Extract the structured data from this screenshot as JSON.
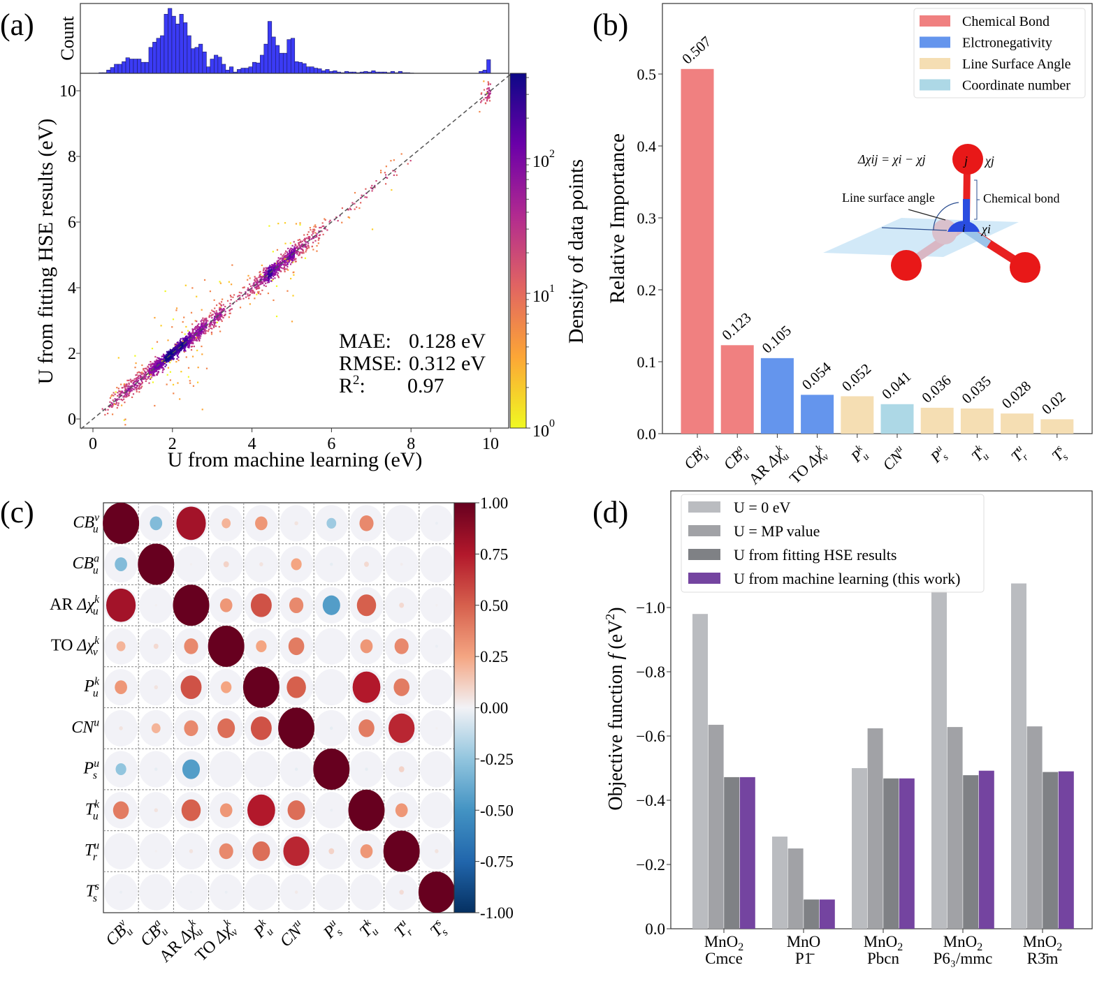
{
  "panel_labels": {
    "a": "(a)",
    "b": "(b)",
    "c": "(c)",
    "d": "(d)"
  },
  "chart_data": [
    {
      "panel": "(a)",
      "type": "scatter",
      "xlabel": "U from machine learning (eV)",
      "ylabel": "U from fitting HSE results (eV)",
      "xlim": [
        -0.3,
        10.5
      ],
      "ylim": [
        -0.3,
        10.5
      ],
      "xticks": [
        "0",
        "2",
        "4",
        "6",
        "8",
        "10"
      ],
      "yticks": [
        "0",
        "2",
        "4",
        "6",
        "8",
        "10"
      ],
      "reference_line": "y = x (dashed)",
      "metrics": [
        {
          "label": "MAE:",
          "value": "0.128 eV"
        },
        {
          "label": "RMSE:",
          "value": "0.312 eV"
        },
        {
          "label": "R",
          "label_sup": "2",
          "label_tail": ":",
          "value": "0.97"
        }
      ],
      "colorbar": {
        "label": "Density of data points",
        "scale": "log",
        "range": [
          1,
          430
        ],
        "colormap": "plasma_r",
        "ticks": [
          {
            "base": "10",
            "exp": "0",
            "value": 1
          },
          {
            "base": "10",
            "exp": "1",
            "value": 10
          },
          {
            "base": "10",
            "exp": "2",
            "value": 100
          }
        ]
      },
      "marginal_histogram": {
        "ylabel": "Count",
        "range": [
          0.15,
          10.0
        ],
        "color": "#3b3bf5",
        "relative_counts": [
          1,
          1,
          5,
          9,
          14,
          14,
          18,
          24,
          22,
          22,
          22,
          17,
          17,
          40,
          48,
          54,
          58,
          91,
          100,
          88,
          76,
          91,
          78,
          58,
          38,
          40,
          45,
          33,
          10,
          22,
          28,
          25,
          14,
          5,
          10,
          2,
          6,
          8,
          8,
          10,
          17,
          16,
          28,
          45,
          80,
          56,
          43,
          31,
          31,
          52,
          54,
          18,
          17,
          15,
          10,
          10,
          8,
          7,
          4,
          6,
          3,
          4,
          2,
          1,
          3,
          2,
          2,
          1,
          2,
          3,
          2,
          4,
          2,
          2,
          2,
          1,
          3,
          1,
          3,
          1,
          1,
          0.5,
          0,
          0,
          0,
          0,
          0,
          0,
          0,
          0,
          0,
          0,
          0,
          0,
          0,
          0,
          0,
          0,
          0,
          3,
          5,
          21
        ]
      }
    },
    {
      "panel": "(b)",
      "type": "bar",
      "ylabel": "Relative Importance",
      "ylim": [
        0,
        0.598
      ],
      "yticks": [
        "0.0",
        "0.1",
        "0.2",
        "0.3",
        "0.4",
        "0.5"
      ],
      "categories": [
        {
          "pre": "",
          "base": "CB",
          "sup": "v",
          "sub": "u"
        },
        {
          "pre": "",
          "base": "CB",
          "sup": "a",
          "sub": "u"
        },
        {
          "pre": "AR ",
          "base": "Δχ",
          "sup": "k",
          "sub": "u"
        },
        {
          "pre": "TO ",
          "base": "Δχ",
          "sup": "k",
          "sub": "v"
        },
        {
          "pre": "",
          "base": "P",
          "sup": "k",
          "sub": "u"
        },
        {
          "pre": "",
          "base": "CN",
          "sup": "u",
          "sub": ""
        },
        {
          "pre": "",
          "base": "P",
          "sup": "u",
          "sub": "s"
        },
        {
          "pre": "",
          "base": "T",
          "sup": "k",
          "sub": "u"
        },
        {
          "pre": "",
          "base": "T",
          "sup": "u",
          "sub": "r"
        },
        {
          "pre": "",
          "base": "T",
          "sup": "s",
          "sub": "s"
        }
      ],
      "values": [
        0.507,
        0.123,
        0.105,
        0.054,
        0.052,
        0.041,
        0.036,
        0.035,
        0.028,
        0.02
      ],
      "value_labels": [
        "0.507",
        "0.123",
        "0.105",
        "0.054",
        "0.052",
        "0.041",
        "0.036",
        "0.035",
        "0.028",
        "0.02"
      ],
      "bar_groups": [
        0,
        0,
        1,
        1,
        2,
        3,
        2,
        2,
        2,
        2
      ],
      "legend": [
        {
          "name": "Chemical Bond",
          "color": "#f08080"
        },
        {
          "name": "Elctronegativity",
          "color": "#6495ed"
        },
        {
          "name": "Line Surface Angle",
          "color": "#f5deb3"
        },
        {
          "name": "Coordinate number",
          "color": "#add8e6"
        }
      ],
      "legend_position": "top-right",
      "inset": {
        "equation": "Δχij = χi − χj",
        "chi_j": "χj",
        "chi_i": "χi",
        "atom_j": "j",
        "atom_i": "i",
        "line_surface_angle": "Line surface angle",
        "chemical_bond": "Chemical bond"
      }
    },
    {
      "panel": "(c)",
      "type": "heatmap",
      "labels": [
        {
          "pre": "",
          "base": "CB",
          "sup": "v",
          "sub": "u"
        },
        {
          "pre": "",
          "base": "CB",
          "sup": "a",
          "sub": "u"
        },
        {
          "pre": "AR ",
          "base": "Δχ",
          "sup": "k",
          "sub": "u"
        },
        {
          "pre": "TO ",
          "base": "Δχ",
          "sup": "k",
          "sub": "v"
        },
        {
          "pre": "",
          "base": "P",
          "sup": "k",
          "sub": "u"
        },
        {
          "pre": "",
          "base": "CN",
          "sup": "u",
          "sub": ""
        },
        {
          "pre": "",
          "base": "P",
          "sup": "u",
          "sub": "s"
        },
        {
          "pre": "",
          "base": "T",
          "sup": "k",
          "sub": "u"
        },
        {
          "pre": "",
          "base": "T",
          "sup": "u",
          "sub": "r"
        },
        {
          "pre": "",
          "base": "T",
          "sup": "s",
          "sub": "s"
        }
      ],
      "matrix": [
        [
          1,
          -0.3,
          0.8,
          0.2,
          0.3,
          0.05,
          -0.22,
          0.35,
          0,
          -0.02
        ],
        [
          -0.3,
          1,
          0.01,
          0.1,
          0.05,
          0.25,
          -0.03,
          0.08,
          0.02,
          0
        ],
        [
          0.8,
          0.01,
          1,
          0.3,
          0.55,
          0.35,
          -0.45,
          0.5,
          0.08,
          0.01
        ],
        [
          0.2,
          0.08,
          0.35,
          1,
          0.25,
          0.4,
          0,
          0.3,
          0.35,
          -0.02
        ],
        [
          0.3,
          0.05,
          0.55,
          0.25,
          1,
          0.5,
          0,
          0.75,
          0.4,
          0
        ],
        [
          0.05,
          0.2,
          0.35,
          0.45,
          0.55,
          1,
          -0.03,
          0.4,
          0.7,
          0.01
        ],
        [
          -0.25,
          -0.03,
          -0.45,
          0,
          0,
          -0.03,
          1,
          -0.03,
          0.1,
          0
        ],
        [
          0.4,
          0.05,
          0.5,
          0.3,
          0.75,
          0.45,
          -0.02,
          1,
          0.3,
          0
        ],
        [
          0,
          0.01,
          0.05,
          0.35,
          0.45,
          0.7,
          0.1,
          0.3,
          1,
          0.05
        ],
        [
          -0.02,
          0,
          -0.01,
          -0.02,
          0,
          0.03,
          0,
          0,
          0.07,
          1
        ]
      ],
      "vlim": [
        -1,
        1
      ],
      "colormap": "RdBu_r",
      "colorbar_ticks": [
        "1.00",
        "0.75",
        "0.50",
        "0.25",
        "0.00",
        "-0.25",
        "-0.50",
        "-0.75",
        "-1.00"
      ]
    },
    {
      "panel": "(d)",
      "type": "bar",
      "ylabel": "Objective function",
      "ylabel_symbol": "f",
      "ylabel_unit": "(eV",
      "ylabel_unit_sup": "2",
      "ylabel_unit_tail": ")",
      "ylim": [
        0,
        1.363
      ],
      "yticks": [
        "0.0",
        "−0.2",
        "−0.4",
        "−0.6",
        "−0.8",
        "−1.0"
      ],
      "categories": [
        {
          "formula": "MnO",
          "sub": "2",
          "space_group": "Cmce"
        },
        {
          "formula": "MnO",
          "sub": "",
          "space_group": "P1̄"
        },
        {
          "formula": "MnO",
          "sub": "2",
          "space_group": "Pbcn"
        },
        {
          "formula": "MnO",
          "sub": "2",
          "space_group": "P6₃/mmc"
        },
        {
          "formula": "MnO",
          "sub": "2",
          "space_group": "R3̄m"
        }
      ],
      "series": [
        {
          "name": "U = 0 eV",
          "color": "#babcc0",
          "values": [
            0.98,
            0.287,
            0.5,
            1.06,
            1.075
          ]
        },
        {
          "name": "U = MP value",
          "color": "#a1a2a6",
          "values": [
            0.635,
            0.25,
            0.624,
            0.628,
            0.63
          ]
        },
        {
          "name": "U from fitting HSE results",
          "color": "#7f8185",
          "values": [
            0.472,
            0.091,
            0.468,
            0.478,
            0.488
          ]
        },
        {
          "name": "U from machine learning (this work)",
          "color": "#7444a0",
          "values": [
            0.472,
            0.091,
            0.468,
            0.492,
            0.49
          ]
        }
      ],
      "legend_position": "top-left"
    }
  ]
}
